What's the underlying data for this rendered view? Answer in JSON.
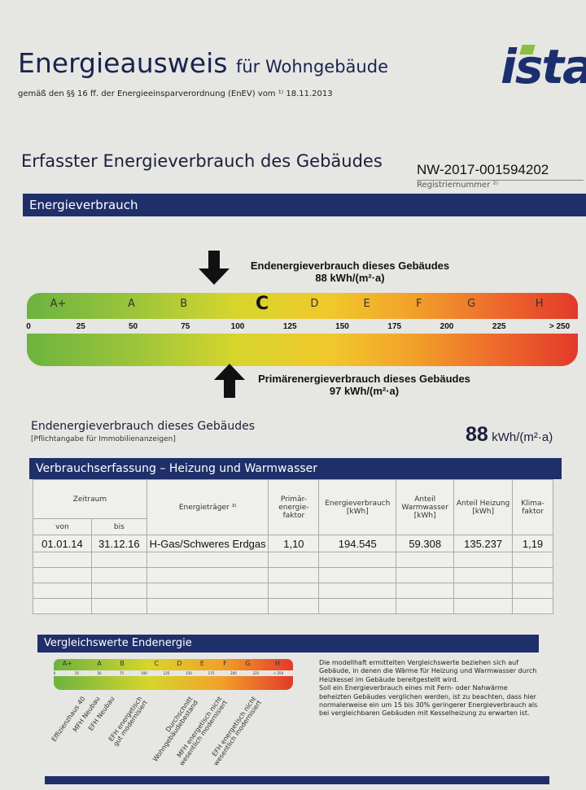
{
  "header": {
    "title": "Energieausweis",
    "title_suffix": "für Wohngebäude",
    "subtitle": "gemäß den §§ 16 ff. der Energieeinsparverordnung (EnEV) vom ¹⁾ 18.11.2013",
    "logo": "ista"
  },
  "section": {
    "heading": "Erfasster Energieverbrauch des Gebäudes",
    "registration_number": "NW-2017-001594202",
    "registration_label": "Registriernummer ²⁾"
  },
  "energy": {
    "bar_title": "Energieverbrauch",
    "classes": [
      "A+",
      "A",
      "B",
      "C",
      "D",
      "E",
      "F",
      "G",
      "H"
    ],
    "highlighted_class": "C",
    "ticks": [
      "0",
      "25",
      "50",
      "75",
      "100",
      "125",
      "150",
      "175",
      "200",
      "225",
      "> 250"
    ],
    "end_energy_label": "Endenergieverbrauch dieses Gebäudes",
    "end_energy_value": 88,
    "end_energy_text": "88 kWh/(m²·a)",
    "primary_energy_label": "Primärenergieverbrauch dieses Gebäudes",
    "primary_energy_value": 97,
    "primary_energy_text": "97 kWh/(m²·a)",
    "summary_label": "Endenergieverbrauch dieses Gebäudes",
    "summary_note": "[Pflichtangabe für Immobilienanzeigen]",
    "summary_value": "88",
    "summary_unit": "kWh/(m²·a)"
  },
  "table": {
    "title": "Verbrauchserfassung – Heizung und Warmwasser",
    "headers": {
      "zeitraum": "Zeitraum",
      "von": "von",
      "bis": "bis",
      "energietraeger": "Energieträger ³⁾",
      "primaer": "Primär-energie-faktor",
      "verbrauch": "Energieverbrauch [kWh]",
      "warmwasser": "Anteil Warmwasser [kWh]",
      "heizung": "Anteil Heizung [kWh]",
      "klima": "Klima-faktor"
    },
    "rows": [
      {
        "von": "01.01.14",
        "bis": "31.12.16",
        "traeger": "H-Gas/Schweres Erdgas",
        "primaer": "1,10",
        "verbrauch": "194.545",
        "warmwasser": "59.308",
        "heizung": "135.237",
        "klima": "1,19"
      }
    ]
  },
  "comparison": {
    "title": "Vergleichswerte Endenergie",
    "classes": [
      "A+",
      "A",
      "B",
      "C",
      "D",
      "E",
      "F",
      "G",
      "H"
    ],
    "ticks": [
      "0",
      "25",
      "50",
      "75",
      "100",
      "125",
      "150",
      "175",
      "200",
      "225",
      "> 250"
    ],
    "references": [
      "Effizienzhaus 40",
      "MFH Neubau",
      "EFH Neubau",
      "EFH energetisch\ngut modernisiert",
      "Durchschnitt\nWohngebäudebestand",
      "MFH energetisch nicht\nwesentlich modernisiert",
      "EFH energetisch nicht\nwesentlich modernisiert"
    ],
    "description": "Die modellhaft ermittelten Vergleichswerte beziehen sich auf Gebäude, in denen die Wärme für Heizung und Warmwasser durch Heizkessel im Gebäude bereitgestellt wird.",
    "description2": "Soll ein Energieverbrauch eines mit Fern- oder Nahwärme beheizten Gebäudes verglichen werden, ist zu beachten, dass hier normalerweise ein um 15 bis 30% geringerer Energieverbrauch als bei vergleichbaren Gebäuden mit Kesselheizung zu erwarten ist."
  },
  "colors": {
    "navy": "#1f2f6a",
    "green": "#6cb33f",
    "yellow": "#d7d52c",
    "orange": "#f2a12a",
    "red": "#e23a2a",
    "logo_accent": "#8cbf3f"
  }
}
